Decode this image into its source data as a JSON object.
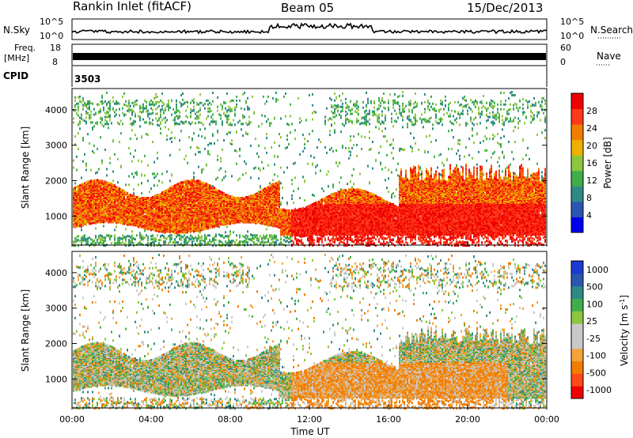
{
  "header": {
    "station": "Rankin Inlet (fitACF)",
    "beam": "Beam 05",
    "date": "15/Dec/2013"
  },
  "top_panels": {
    "nsky_label": "N.Sky",
    "nsky_ticks": [
      "10^5",
      "10^0"
    ],
    "nsearch_label": "N.Search",
    "nsearch_ticks": [
      "10^5",
      "10^0"
    ],
    "freq_label_line1": "Freq.",
    "freq_label_line2": "[MHz]",
    "freq_ticks": [
      "18",
      "8"
    ],
    "nave_label": "Nave",
    "nave_ticks": [
      "60",
      "0"
    ],
    "cpid_label": "CPID",
    "cpid_value": "3503"
  },
  "colors": {
    "power_scale": [
      "#0000ee",
      "#2b56b0",
      "#2d8a86",
      "#3fae4a",
      "#8cc63f",
      "#f0b000",
      "#f07d00",
      "#ff3a1a",
      "#ee0000"
    ],
    "velocity_scale": [
      "#ee0000",
      "#ff4a1a",
      "#f07d00",
      "#f6a23a",
      "#c8c8c8",
      "#c8c8c8",
      "#8cc63f",
      "#3fae4a",
      "#2d8a86",
      "#2b56b0",
      "#1a3ad0"
    ]
  },
  "chart_data": [
    {
      "type": "heatmap",
      "name": "power",
      "ylabel": "Slant Range [km]",
      "yticks": [
        "1000",
        "2000",
        "3000",
        "4000"
      ],
      "ylim": [
        180,
        4600
      ],
      "xlim": [
        "00:00",
        "24:00"
      ],
      "colorbar_label": "Power [dB]",
      "colorbar_ticks": [
        "4",
        "8",
        "12",
        "16",
        "20",
        "24",
        "28"
      ],
      "colorbar_range": [
        0,
        30
      ]
    },
    {
      "type": "heatmap",
      "name": "velocity",
      "ylabel": "Slant Range [km]",
      "yticks": [
        "1000",
        "2000",
        "3000",
        "4000"
      ],
      "ylim": [
        180,
        4600
      ],
      "xlabel": "Time UT",
      "xticks": [
        "00:00",
        "04:00",
        "08:00",
        "12:00",
        "16:00",
        "20:00",
        "00:00"
      ],
      "colorbar_label": "Velocity [m s",
      "colorbar_label_sup": "-1",
      "colorbar_label_end": "]",
      "colorbar_ticks": [
        "1000",
        "500",
        "100",
        "25",
        "-25",
        "-100",
        "-500",
        "-1000"
      ]
    }
  ]
}
